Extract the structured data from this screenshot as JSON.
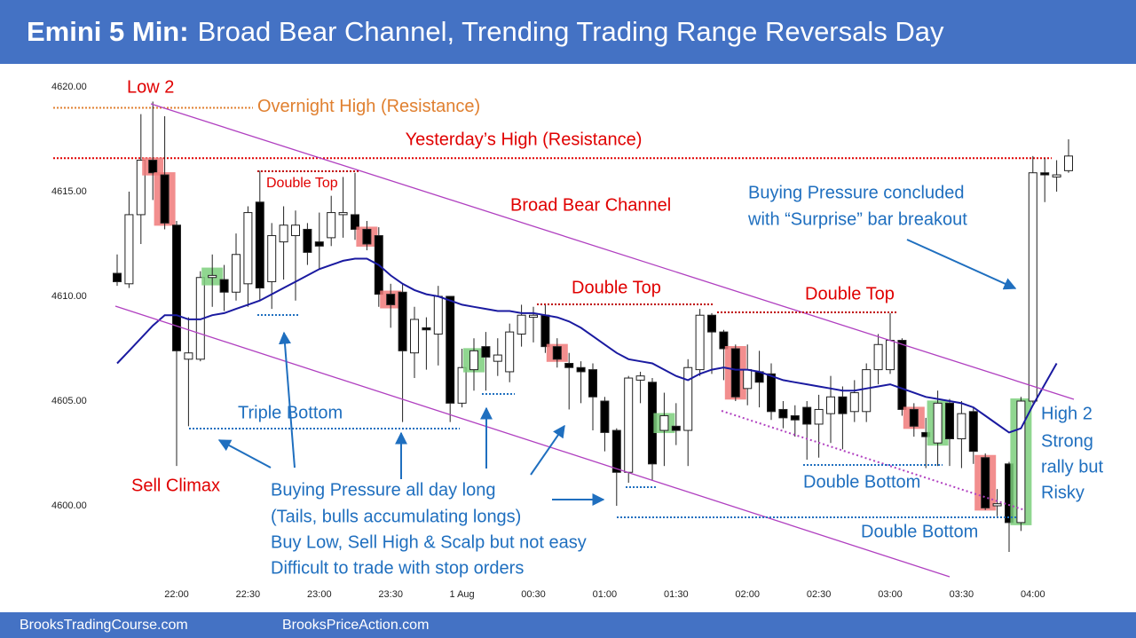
{
  "chart_data": {
    "type": "candlestick",
    "title_bold": "Emini 5 Min:",
    "title": "Broad Bear Channel, Trending Trading Range Reversals Day",
    "footer": [
      "BrooksTradingCourse.com",
      "BrooksPriceAction.com"
    ],
    "categories": [
      null,
      null,
      null,
      null,
      null,
      "22:00",
      null,
      null,
      null,
      null,
      null,
      "22:30",
      null,
      null,
      null,
      null,
      null,
      "23:00",
      null,
      null,
      null,
      null,
      null,
      "23:30",
      null,
      null,
      null,
      null,
      null,
      "1 Aug",
      null,
      null,
      null,
      null,
      null,
      "00:30",
      null,
      null,
      null,
      null,
      null,
      "01:00",
      null,
      null,
      null,
      null,
      null,
      "01:30",
      null,
      null,
      null,
      null,
      null,
      "02:00",
      null,
      null,
      null,
      null,
      null,
      "02:30",
      null,
      null,
      null,
      null,
      null,
      "03:00",
      null,
      null,
      null,
      null,
      null,
      "03:30",
      null,
      null,
      null,
      null,
      null,
      "04:00",
      null,
      null,
      null
    ],
    "open": [
      4611.1,
      4610.6,
      4613.9,
      4616.5,
      4615.8,
      4613.4,
      4607.0,
      4607.0,
      4610.9,
      4610.8,
      4610.2,
      4610.6,
      4614.5,
      4610.7,
      4612.6,
      4612.9,
      4613.2,
      4612.6,
      4612.8,
      4613.9,
      4613.9,
      4613.2,
      4612.9,
      4610.1,
      4610.2,
      4607.3,
      4608.5,
      4608.2,
      4610.0,
      4604.9,
      4606.5,
      4607.6,
      4606.9,
      4606.4,
      4608.2,
      4609.0,
      4609.1,
      4607.6,
      4606.8,
      4606.6,
      4606.5,
      4605.0,
      4603.6,
      4601.6,
      4606.0,
      4605.9,
      4603.6,
      4603.8,
      4603.6,
      4606.5,
      4609.1,
      4608.3,
      4607.5,
      4605.6,
      4606.4,
      4606.3,
      4604.6,
      4604.3,
      4604.7,
      4603.9,
      4604.4,
      4605.2,
      4604.5,
      4604.5,
      4606.5,
      4606.5,
      4607.9,
      4604.6,
      4603.5,
      4603.0,
      4604.9,
      4603.2,
      4604.5,
      4602.3,
      4600.0,
      4602.0,
      4599.2,
      4605.0,
      4615.9,
      4615.7,
      4616.0
    ],
    "high": [
      4612.0,
      4615.0,
      4618.7,
      4619.3,
      4618.6,
      4613.6,
      4609.0,
      4611.2,
      4612.0,
      4611.5,
      4613.0,
      4614.3,
      4616.0,
      4613.5,
      4614.3,
      4614.1,
      4613.5,
      4614.0,
      4614.8,
      4615.7,
      4615.9,
      4613.6,
      4613.3,
      4610.6,
      4610.6,
      4609.5,
      4609.0,
      4610.5,
      4610.0,
      4607.5,
      4608.0,
      4608.3,
      4608.0,
      4608.7,
      4609.6,
      4609.5,
      4609.6,
      4608.0,
      4607.3,
      4606.9,
      4606.8,
      4605.2,
      4603.7,
      4606.2,
      4606.4,
      4606.1,
      4605.4,
      4604.9,
      4607.0,
      4609.4,
      4609.2,
      4608.4,
      4607.7,
      4607.7,
      4607.4,
      4606.8,
      4605.0,
      4604.8,
      4605.0,
      4605.3,
      4606.2,
      4605.7,
      4606.0,
      4606.8,
      4608.2,
      4609.2,
      4608.0,
      4604.9,
      4604.2,
      4605.5,
      4605.1,
      4605.0,
      4604.7,
      4602.5,
      4600.8,
      4602.1,
      4605.2,
      4616.7,
      4616.6,
      4616.5,
      4617.5
    ],
    "low": [
      4610.5,
      4610.4,
      4612.5,
      4614.6,
      4613.2,
      4601.9,
      4603.8,
      4606.9,
      4609.5,
      4609.3,
      4609.8,
      4609.5,
      4609.8,
      4609.4,
      4610.8,
      4609.8,
      4611.5,
      4611.3,
      4612.4,
      4612.8,
      4612.7,
      4612.2,
      4609.5,
      4608.5,
      4604.0,
      4606.1,
      4606.5,
      4606.7,
      4604.0,
      4604.7,
      4605.5,
      4605.5,
      4606.2,
      4605.9,
      4607.6,
      4607.8,
      4607.3,
      4606.6,
      4604.6,
      4604.9,
      4603.6,
      4602.6,
      4600.0,
      4601.1,
      4604.9,
      4601.2,
      4601.9,
      4602.9,
      4601.9,
      4606.2,
      4606.3,
      4606.0,
      4605.0,
      4604.8,
      4604.7,
      4604.1,
      4603.7,
      4603.3,
      4602.2,
      4602.3,
      4603.0,
      4602.7,
      4604.0,
      4604.0,
      4605.8,
      4606.3,
      4604.3,
      4603.3,
      4601.8,
      4601.9,
      4601.9,
      4601.8,
      4602.0,
      4599.8,
      4599.5,
      4597.8,
      4598.8,
      4604.9,
      4614.5,
      4615.0,
      4615.9
    ],
    "close": [
      4610.7,
      4613.9,
      4616.5,
      4615.9,
      4613.5,
      4607.4,
      4607.3,
      4610.9,
      4611.0,
      4610.2,
      4612.0,
      4614.0,
      4610.4,
      4612.9,
      4613.4,
      4613.4,
      4612.1,
      4612.4,
      4614.0,
      4614.0,
      4613.2,
      4612.5,
      4610.1,
      4609.6,
      4607.4,
      4608.9,
      4608.4,
      4610.0,
      4604.9,
      4606.6,
      4607.4,
      4607.1,
      4607.2,
      4608.3,
      4609.1,
      4609.1,
      4607.6,
      4607.0,
      4606.6,
      4606.4,
      4605.2,
      4603.5,
      4601.6,
      4606.1,
      4606.2,
      4602.0,
      4604.3,
      4603.6,
      4606.6,
      4609.1,
      4608.3,
      4607.5,
      4605.2,
      4606.5,
      4605.9,
      4604.5,
      4604.2,
      4604.1,
      4603.9,
      4604.6,
      4605.2,
      4604.4,
      4605.4,
      4606.5,
      4607.7,
      4607.9,
      4604.6,
      4603.8,
      4603.3,
      4604.9,
      4603.2,
      4604.4,
      4602.6,
      4599.9,
      4600.1,
      4599.2,
      4605.0,
      4615.9,
      4615.8,
      4615.8,
      4616.7
    ],
    "ema": [
      4606.8,
      4607.4,
      4608.0,
      4608.6,
      4609.1,
      4609.1,
      4608.9,
      4608.9,
      4609.1,
      4609.2,
      4609.4,
      4609.6,
      4609.8,
      4610.1,
      4610.4,
      4610.7,
      4611.0,
      4611.3,
      4611.5,
      4611.7,
      4611.8,
      4611.8,
      4611.5,
      4611.0,
      4610.6,
      4610.3,
      4610.1,
      4610.0,
      4609.8,
      4609.6,
      4609.5,
      4609.4,
      4609.3,
      4609.3,
      4609.2,
      4609.2,
      4609.1,
      4609.0,
      4608.8,
      4608.5,
      4608.1,
      4607.7,
      4607.3,
      4607.0,
      4606.9,
      4606.8,
      4606.5,
      4606.2,
      4606.0,
      4606.3,
      4606.5,
      4606.6,
      4606.5,
      4606.5,
      4606.4,
      4606.2,
      4606.0,
      4605.9,
      4605.8,
      4605.7,
      4605.6,
      4605.5,
      4605.5,
      4605.6,
      4605.7,
      4605.8,
      4605.6,
      4605.4,
      4605.2,
      4605.1,
      4605.0,
      4604.9,
      4604.7,
      4604.3,
      4603.9,
      4603.5,
      4603.7,
      4604.8,
      4605.8,
      4606.8,
      null
    ],
    "ema_color": "#1a1aa0",
    "highlight": [
      null,
      null,
      null,
      "#f07a7a",
      "#f07a7a",
      null,
      null,
      null,
      "#7ccf7c",
      null,
      null,
      null,
      null,
      null,
      null,
      null,
      null,
      null,
      null,
      null,
      null,
      "#f07a7a",
      null,
      "#f07a7a",
      null,
      null,
      null,
      null,
      null,
      null,
      "#7ccf7c",
      null,
      null,
      null,
      null,
      null,
      null,
      "#f07a7a",
      null,
      null,
      null,
      null,
      null,
      null,
      null,
      null,
      "#7ccf7c",
      null,
      null,
      null,
      null,
      null,
      "#f07a7a",
      null,
      null,
      null,
      null,
      null,
      null,
      null,
      null,
      null,
      null,
      null,
      null,
      null,
      null,
      "#f07a7a",
      null,
      "#7ccf7c",
      null,
      null,
      null,
      "#f07a7a",
      null,
      null,
      "#7ccf7c",
      null,
      null,
      null,
      null
    ],
    "ylim": [
      4596.4,
      4620.76
    ],
    "yticks": [
      {
        "value": 4600,
        "label": "4600.00"
      },
      {
        "value": 4605,
        "label": "4605.00"
      },
      {
        "value": 4610,
        "label": "4610.00"
      },
      {
        "value": 4615,
        "label": "4615.00"
      },
      {
        "value": 4620,
        "label": "4620.00"
      }
    ],
    "reference_lines": [
      {
        "label": "Overnight High (Resistance)",
        "value": 4619.0,
        "color": "#e08030"
      },
      {
        "label": "Yesterday’s High (Resistance)",
        "value": 4616.6,
        "color": "#e00000"
      }
    ],
    "annotations": [
      "Low 2",
      "Double Top",
      "Broad Bear Channel",
      "Double Top",
      "Double Top",
      "Sell Climax",
      "Triple Bottom",
      "Buying Pressure concluded",
      "with “Surprise” bar breakout",
      "Buying Pressure all day long",
      "(Tails, bulls accumulating longs)",
      "Buy Low, Sell High & Scalp but not easy",
      "Difficult to trade with stop orders",
      "Double Bottom",
      "Double Bottom",
      "High 2",
      "Strong",
      "rally but",
      "Risky"
    ]
  }
}
